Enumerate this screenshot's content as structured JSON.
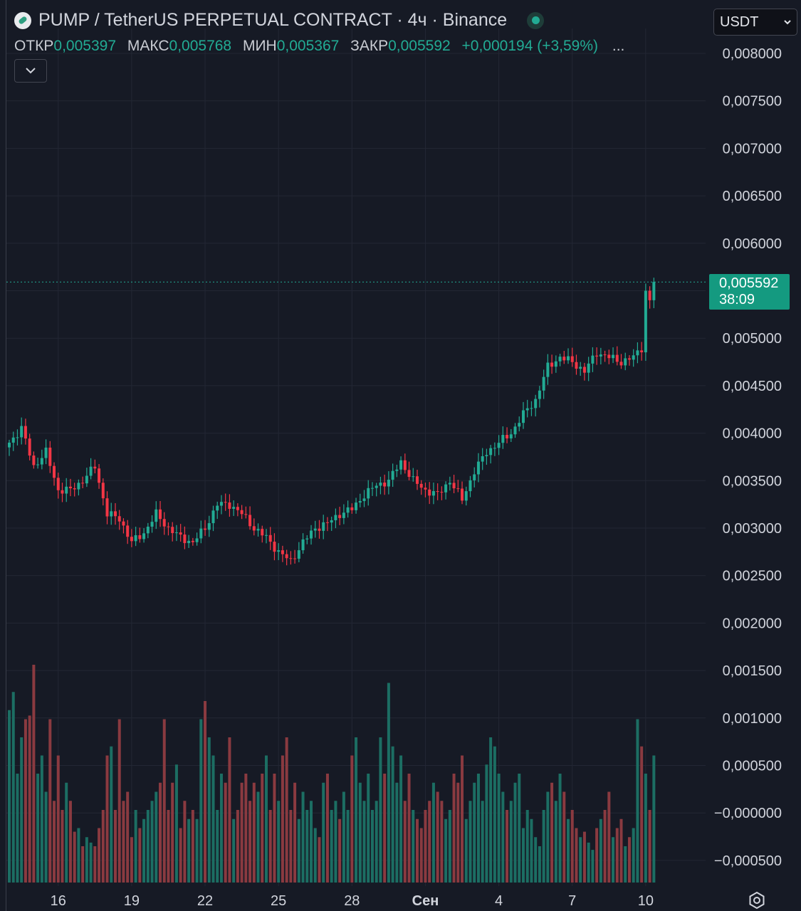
{
  "header": {
    "title": "PUMP / TetherUS PERPETUAL CONTRACT · 4ч · Binance",
    "ohlc": {
      "open_label": "ОТКР",
      "open": "0,005397",
      "high_label": "МАКС",
      "high": "0,005768",
      "low_label": "МИН",
      "low": "0,005367",
      "close_label": "ЗАКР",
      "close": "0,005592",
      "change": "+0,000194 (+3,59%)",
      "more": "..."
    },
    "collapse_icon": "chevron-down-icon",
    "currency": "USDT"
  },
  "colors": {
    "background": "#161a25",
    "up": "#22ab94",
    "down": "#f23645",
    "up_volume": "#1c6e63",
    "down_volume": "#8a3a40",
    "grid": "#232734",
    "text": "#d1d4dc"
  },
  "price_tag": {
    "price": "0,005592",
    "countdown": "38:09"
  },
  "chart_data": {
    "type": "candlestick",
    "title": "PUMP / TetherUS PERPETUAL CONTRACT · 4ч · Binance",
    "timeframe": "4ч",
    "y_range": [
      -0.0007,
      0.0083
    ],
    "y_ticks": [
      "0,008000",
      "0,007500",
      "0,007000",
      "0,006500",
      "0,006000",
      "0,005500",
      "0,005000",
      "0,004500",
      "0,004000",
      "0,003500",
      "0,003000",
      "0,002500",
      "0,002000",
      "0,001500",
      "0,001000",
      "0,000500",
      "−0,000000",
      "−0,000500"
    ],
    "y_tick_values": [
      0.008,
      0.0075,
      0.007,
      0.0065,
      0.006,
      0.0055,
      0.005,
      0.0045,
      0.004,
      0.0035,
      0.003,
      0.0025,
      0.002,
      0.0015,
      0.001,
      0.0005,
      0,
      -0.0005
    ],
    "x_ticks": [
      "16",
      "19",
      "22",
      "25",
      "28",
      "Сен",
      "4",
      "7",
      "10"
    ],
    "x_tick_candle_index": [
      12,
      30,
      48,
      66,
      84,
      102,
      120,
      138,
      156
    ],
    "last_price": 0.005592,
    "waypoints": [
      [
        0,
        0.0039
      ],
      [
        3,
        0.00405
      ],
      [
        6,
        0.00365
      ],
      [
        9,
        0.0038
      ],
      [
        12,
        0.0034
      ],
      [
        15,
        0.0034
      ],
      [
        18,
        0.0035
      ],
      [
        21,
        0.00365
      ],
      [
        24,
        0.00315
      ],
      [
        27,
        0.0031
      ],
      [
        30,
        0.00285
      ],
      [
        33,
        0.00295
      ],
      [
        36,
        0.00315
      ],
      [
        39,
        0.003
      ],
      [
        42,
        0.0029
      ],
      [
        45,
        0.00285
      ],
      [
        48,
        0.003
      ],
      [
        51,
        0.00325
      ],
      [
        54,
        0.00325
      ],
      [
        57,
        0.00315
      ],
      [
        60,
        0.003
      ],
      [
        63,
        0.0029
      ],
      [
        66,
        0.00275
      ],
      [
        69,
        0.00265
      ],
      [
        72,
        0.00285
      ],
      [
        75,
        0.003
      ],
      [
        78,
        0.00305
      ],
      [
        81,
        0.00315
      ],
      [
        84,
        0.0032
      ],
      [
        87,
        0.00335
      ],
      [
        90,
        0.00345
      ],
      [
        93,
        0.0035
      ],
      [
        96,
        0.0037
      ],
      [
        99,
        0.0035
      ],
      [
        102,
        0.0034
      ],
      [
        105,
        0.00335
      ],
      [
        108,
        0.0035
      ],
      [
        111,
        0.0033
      ],
      [
        114,
        0.0036
      ],
      [
        117,
        0.0038
      ],
      [
        120,
        0.0039
      ],
      [
        123,
        0.004
      ],
      [
        126,
        0.0042
      ],
      [
        129,
        0.00435
      ],
      [
        132,
        0.0047
      ],
      [
        135,
        0.0048
      ],
      [
        138,
        0.00475
      ],
      [
        141,
        0.00465
      ],
      [
        144,
        0.00485
      ],
      [
        147,
        0.0048
      ],
      [
        150,
        0.00475
      ],
      [
        153,
        0.0048
      ],
      [
        155,
        0.0049
      ],
      [
        156,
        0.0055
      ],
      [
        157,
        0.0054
      ],
      [
        158,
        0.00559
      ]
    ]
  },
  "volume": {
    "values": [
      95,
      105,
      60,
      80,
      90,
      92,
      120,
      60,
      70,
      50,
      90,
      45,
      70,
      40,
      55,
      45,
      28,
      30,
      20,
      25,
      22,
      20,
      30,
      40,
      70,
      75,
      40,
      90,
      45,
      50,
      25,
      40,
      30,
      35,
      40,
      45,
      50,
      55,
      90,
      40,
      55,
      65,
      30,
      45,
      35,
      40,
      35,
      90,
      100,
      80,
      70,
      40,
      60,
      55,
      80,
      35,
      40,
      55,
      60,
      45,
      55,
      50,
      60,
      70,
      40,
      60,
      45,
      70,
      80,
      40,
      55,
      35,
      50,
      40,
      45,
      30,
      25,
      55,
      60,
      40,
      45,
      35,
      50,
      40,
      70,
      80,
      55,
      45,
      60,
      40,
      45,
      80,
      60,
      110,
      75,
      55,
      70,
      45,
      60,
      40,
      35,
      30,
      40,
      45,
      55,
      50,
      45,
      35,
      40,
      60,
      55,
      70,
      35,
      45,
      55,
      60,
      45,
      65,
      80,
      75,
      60,
      50,
      40,
      45,
      55,
      60,
      30,
      40,
      35,
      25,
      20,
      40,
      50,
      55,
      45,
      60,
      50,
      35,
      40,
      30,
      25,
      28,
      22,
      18,
      30,
      35,
      40,
      50,
      25,
      30,
      35,
      20,
      25,
      30,
      90,
      75,
      60,
      40,
      70,
      80
    ]
  }
}
